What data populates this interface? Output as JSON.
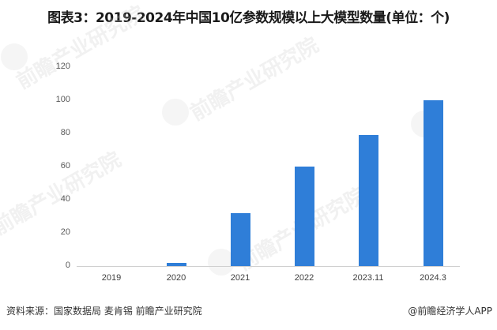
{
  "title": "图表3：2019-2024年中国10亿参数规模以上大模型数量(单位：个)",
  "chart_data": {
    "type": "bar",
    "title": "图表3：2019-2024年中国10亿参数规模以上大模型数量(单位：个)",
    "categories": [
      "2019",
      "2020",
      "2021",
      "2022",
      "2023.11",
      "2024.3"
    ],
    "values": [
      0,
      2,
      32,
      60,
      79,
      100
    ],
    "xlabel": "",
    "ylabel": "",
    "ylim": [
      0,
      120
    ],
    "yticks": [
      "0",
      "20",
      "40",
      "60",
      "80",
      "100",
      "120"
    ],
    "grid": false,
    "legend": null,
    "bar_color": "#2f7ed8",
    "unit": "个"
  },
  "footer": {
    "source": "资料来源：国家数据局 麦肯锡 前瞻产业研究院",
    "credit": "@前瞻经济学人APP"
  },
  "watermark": "前瞻产业研究院"
}
